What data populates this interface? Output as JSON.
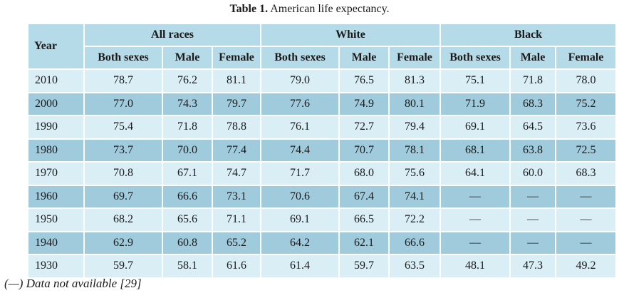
{
  "caption": {
    "lead": "Table 1.",
    "text": "American life expectancy."
  },
  "header": {
    "year": "Year",
    "groups": [
      "All races",
      "White",
      "Black"
    ],
    "subheads": [
      "Both sexes",
      "Male",
      "Female",
      "Both sexes",
      "Male",
      "Female",
      "Both sexes",
      "Male",
      "Female"
    ]
  },
  "rows": [
    {
      "year": "2010",
      "values": [
        "78.7",
        "76.2",
        "81.1",
        "79.0",
        "76.5",
        "81.3",
        "75.1",
        "71.8",
        "78.0"
      ]
    },
    {
      "year": "2000",
      "values": [
        "77.0",
        "74.3",
        "79.7",
        "77.6",
        "74.9",
        "80.1",
        "71.9",
        "68.3",
        "75.2"
      ]
    },
    {
      "year": "1990",
      "values": [
        "75.4",
        "71.8",
        "78.8",
        "76.1",
        "72.7",
        "79.4",
        "69.1",
        "64.5",
        "73.6"
      ]
    },
    {
      "year": "1980",
      "values": [
        "73.7",
        "70.0",
        "77.4",
        "74.4",
        "70.7",
        "78.1",
        "68.1",
        "63.8",
        "72.5"
      ]
    },
    {
      "year": "1970",
      "values": [
        "70.8",
        "67.1",
        "74.7",
        "71.7",
        "68.0",
        "75.6",
        "64.1",
        "60.0",
        "68.3"
      ]
    },
    {
      "year": "1960",
      "values": [
        "69.7",
        "66.6",
        "73.1",
        "70.6",
        "67.4",
        "74.1",
        "—",
        "—",
        "—"
      ]
    },
    {
      "year": "1950",
      "values": [
        "68.2",
        "65.6",
        "71.1",
        "69.1",
        "66.5",
        "72.2",
        "—",
        "—",
        "—"
      ]
    },
    {
      "year": "1940",
      "values": [
        "62.9",
        "60.8",
        "65.2",
        "64.2",
        "62.1",
        "66.6",
        "—",
        "—",
        "—"
      ]
    },
    {
      "year": "1930",
      "values": [
        "59.7",
        "58.1",
        "61.6",
        "61.4",
        "59.7",
        "63.5",
        "48.1",
        "47.3",
        "49.2"
      ]
    }
  ],
  "footnote": "(—) Data not available [29]",
  "colors": {
    "header": "#b6dbe8",
    "row_light": "#d9eef5",
    "row_dark": "#9fcbdc"
  }
}
